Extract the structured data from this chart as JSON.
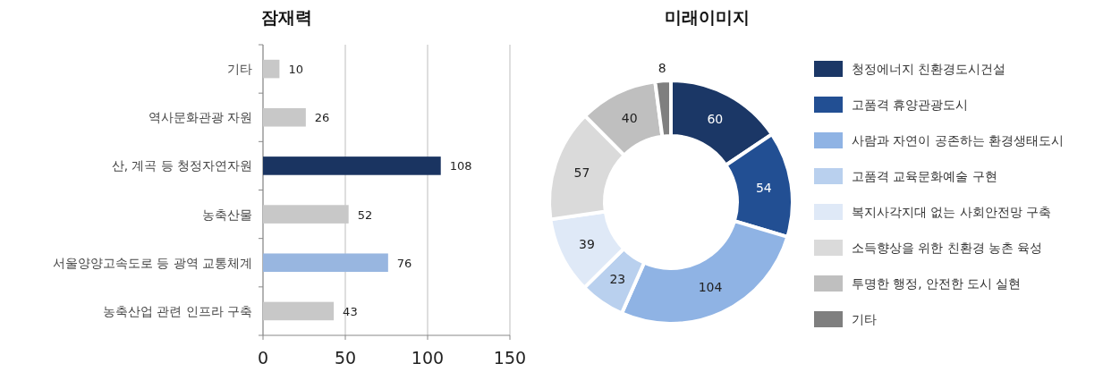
{
  "chart_data": [
    {
      "type": "bar",
      "title": "잠재력",
      "orientation": "horizontal",
      "categories": [
        "기타",
        "역사문화관광 자원",
        "산, 계곡 등 청정자연자원",
        "농축산물",
        "서울양양고속도로 등 광역 교통체계",
        "농축산업 관련 인프라 구축"
      ],
      "values": [
        10,
        26,
        108,
        52,
        76,
        43
      ],
      "colors": [
        "#c8c8c8",
        "#c8c8c8",
        "#1a3461",
        "#c8c8c8",
        "#98b6e0",
        "#c8c8c8"
      ],
      "xlim": [
        0,
        150
      ],
      "xticks": [
        0,
        50,
        100,
        150
      ],
      "grid": "x",
      "data_labels": true
    },
    {
      "type": "donut",
      "title": "미래이미지",
      "categories": [
        "청정에너지 친환경도시건설",
        "고품격 휴양관광도시",
        "사람과 자연이 공존하는 환경생태도시",
        "고품격 교육문화예술 구현",
        "복지사각지대 없는 사회안전망 구축",
        "소득향상을 위한 친환경 농촌 육성",
        "투명한 행정, 안전한 도시 실현",
        "기타"
      ],
      "values": [
        60,
        54,
        104,
        23,
        39,
        57,
        40,
        8
      ],
      "colors": [
        "#1b3766",
        "#224f93",
        "#8fb3e4",
        "#b9d0ee",
        "#dfe9f7",
        "#dadada",
        "#bfbfbf",
        "#7f7f7f"
      ],
      "data_labels": true,
      "legend": "right"
    }
  ]
}
